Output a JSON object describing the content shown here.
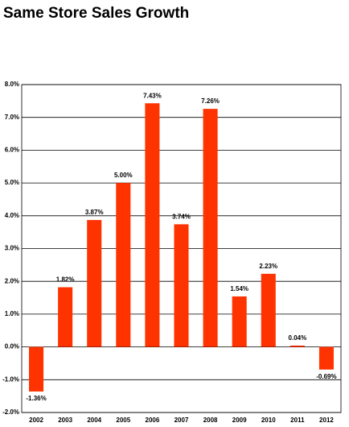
{
  "chart_data": {
    "type": "bar",
    "title": "Same Store Sales Growth",
    "categories": [
      "2002",
      "2003",
      "2004",
      "2005",
      "2006",
      "2007",
      "2008",
      "2009",
      "2010",
      "2011",
      "2012"
    ],
    "values": [
      -1.36,
      1.82,
      3.87,
      5.0,
      7.43,
      3.74,
      7.26,
      1.54,
      2.23,
      0.04,
      -0.69
    ],
    "value_labels": [
      "-1.36%",
      "1.82%",
      "3.87%",
      "5.00%",
      "7.43%",
      "3.74%",
      "7.26%",
      "1.54%",
      "2.23%",
      "0.04%",
      "-0.69%"
    ],
    "color": "#ff3300",
    "ylim": [
      -2,
      8
    ],
    "yticks": [
      {
        "value": -2,
        "label": "-2.0%"
      },
      {
        "value": -1,
        "label": "-1.0%"
      },
      {
        "value": 0,
        "label": "0.0%"
      },
      {
        "value": 1,
        "label": "1.0%"
      },
      {
        "value": 2,
        "label": "2.0%"
      },
      {
        "value": 3,
        "label": "3.0%"
      },
      {
        "value": 4,
        "label": "4.0%"
      },
      {
        "value": 5,
        "label": "5.0%"
      },
      {
        "value": 6,
        "label": "6.0%"
      },
      {
        "value": 7,
        "label": "7.0%"
      },
      {
        "value": 8,
        "label": "8.0%"
      }
    ],
    "grid": true
  }
}
